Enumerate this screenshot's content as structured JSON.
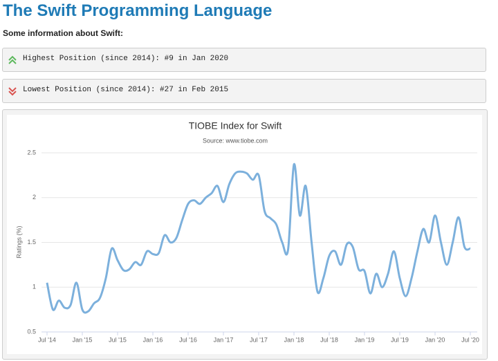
{
  "header": {
    "title": "The Swift Programming Language",
    "subtitle": "Some information about Swift:"
  },
  "info": {
    "highest": "Highest Position (since 2014): #9 in Jan 2020",
    "lowest": "Lowest Position (since 2014): #27 in Feb 2015"
  },
  "chart_data": {
    "type": "line",
    "title": "TIOBE Index for Swift",
    "subtitle": "Source: www.tiobe.com",
    "y_label": "Ratings (%)",
    "x": [
      "2014-07",
      "2014-08",
      "2014-09",
      "2014-10",
      "2014-11",
      "2014-12",
      "2015-01",
      "2015-02",
      "2015-03",
      "2015-04",
      "2015-05",
      "2015-06",
      "2015-07",
      "2015-08",
      "2015-09",
      "2015-10",
      "2015-11",
      "2015-12",
      "2016-01",
      "2016-02",
      "2016-03",
      "2016-04",
      "2016-05",
      "2016-06",
      "2016-07",
      "2016-08",
      "2016-09",
      "2016-10",
      "2016-11",
      "2016-12",
      "2017-01",
      "2017-02",
      "2017-03",
      "2017-04",
      "2017-05",
      "2017-06",
      "2017-07",
      "2017-08",
      "2017-09",
      "2017-10",
      "2017-11",
      "2017-12",
      "2018-01",
      "2018-02",
      "2018-03",
      "2018-04",
      "2018-05",
      "2018-06",
      "2018-07",
      "2018-08",
      "2018-09",
      "2018-10",
      "2018-11",
      "2018-12",
      "2019-01",
      "2019-02",
      "2019-03",
      "2019-04",
      "2019-05",
      "2019-06",
      "2019-07",
      "2019-08",
      "2019-09",
      "2019-10",
      "2019-11",
      "2019-12",
      "2020-01",
      "2020-02",
      "2020-03",
      "2020-04",
      "2020-05",
      "2020-06",
      "2020-07"
    ],
    "series": [
      {
        "name": "Swift",
        "color": "#7cb0dc",
        "values": [
          1.05,
          0.75,
          0.85,
          0.77,
          0.8,
          1.05,
          0.75,
          0.73,
          0.82,
          0.88,
          1.1,
          1.43,
          1.3,
          1.19,
          1.2,
          1.28,
          1.25,
          1.4,
          1.37,
          1.38,
          1.58,
          1.5,
          1.55,
          1.75,
          1.93,
          1.97,
          1.93,
          2.0,
          2.05,
          2.13,
          1.95,
          2.15,
          2.27,
          2.29,
          2.27,
          2.2,
          2.25,
          1.85,
          1.77,
          1.7,
          1.5,
          1.42,
          2.37,
          1.8,
          2.13,
          1.5,
          0.95,
          1.1,
          1.35,
          1.4,
          1.25,
          1.48,
          1.45,
          1.2,
          1.18,
          0.93,
          1.15,
          1.0,
          1.15,
          1.4,
          1.1,
          0.9,
          1.1,
          1.4,
          1.65,
          1.5,
          1.8,
          1.5,
          1.25,
          1.5,
          1.78,
          1.45,
          1.43
        ]
      }
    ],
    "xticks": [
      {
        "value": "2014-07",
        "label": "Jul '14"
      },
      {
        "value": "2015-01",
        "label": "Jan '15"
      },
      {
        "value": "2015-07",
        "label": "Jul '15"
      },
      {
        "value": "2016-01",
        "label": "Jan '16"
      },
      {
        "value": "2016-07",
        "label": "Jul '16"
      },
      {
        "value": "2017-01",
        "label": "Jan '17"
      },
      {
        "value": "2017-07",
        "label": "Jul '17"
      },
      {
        "value": "2018-01",
        "label": "Jan '18"
      },
      {
        "value": "2018-07",
        "label": "Jul '18"
      },
      {
        "value": "2019-01",
        "label": "Jan '19"
      },
      {
        "value": "2019-07",
        "label": "Jul '19"
      },
      {
        "value": "2020-01",
        "label": "Jan '20"
      },
      {
        "value": "2020-07",
        "label": "Jul '20"
      }
    ],
    "ylim": [
      0.5,
      2.5
    ],
    "yticks": [
      0.5,
      1,
      1.5,
      2,
      2.5
    ],
    "grid": true
  }
}
